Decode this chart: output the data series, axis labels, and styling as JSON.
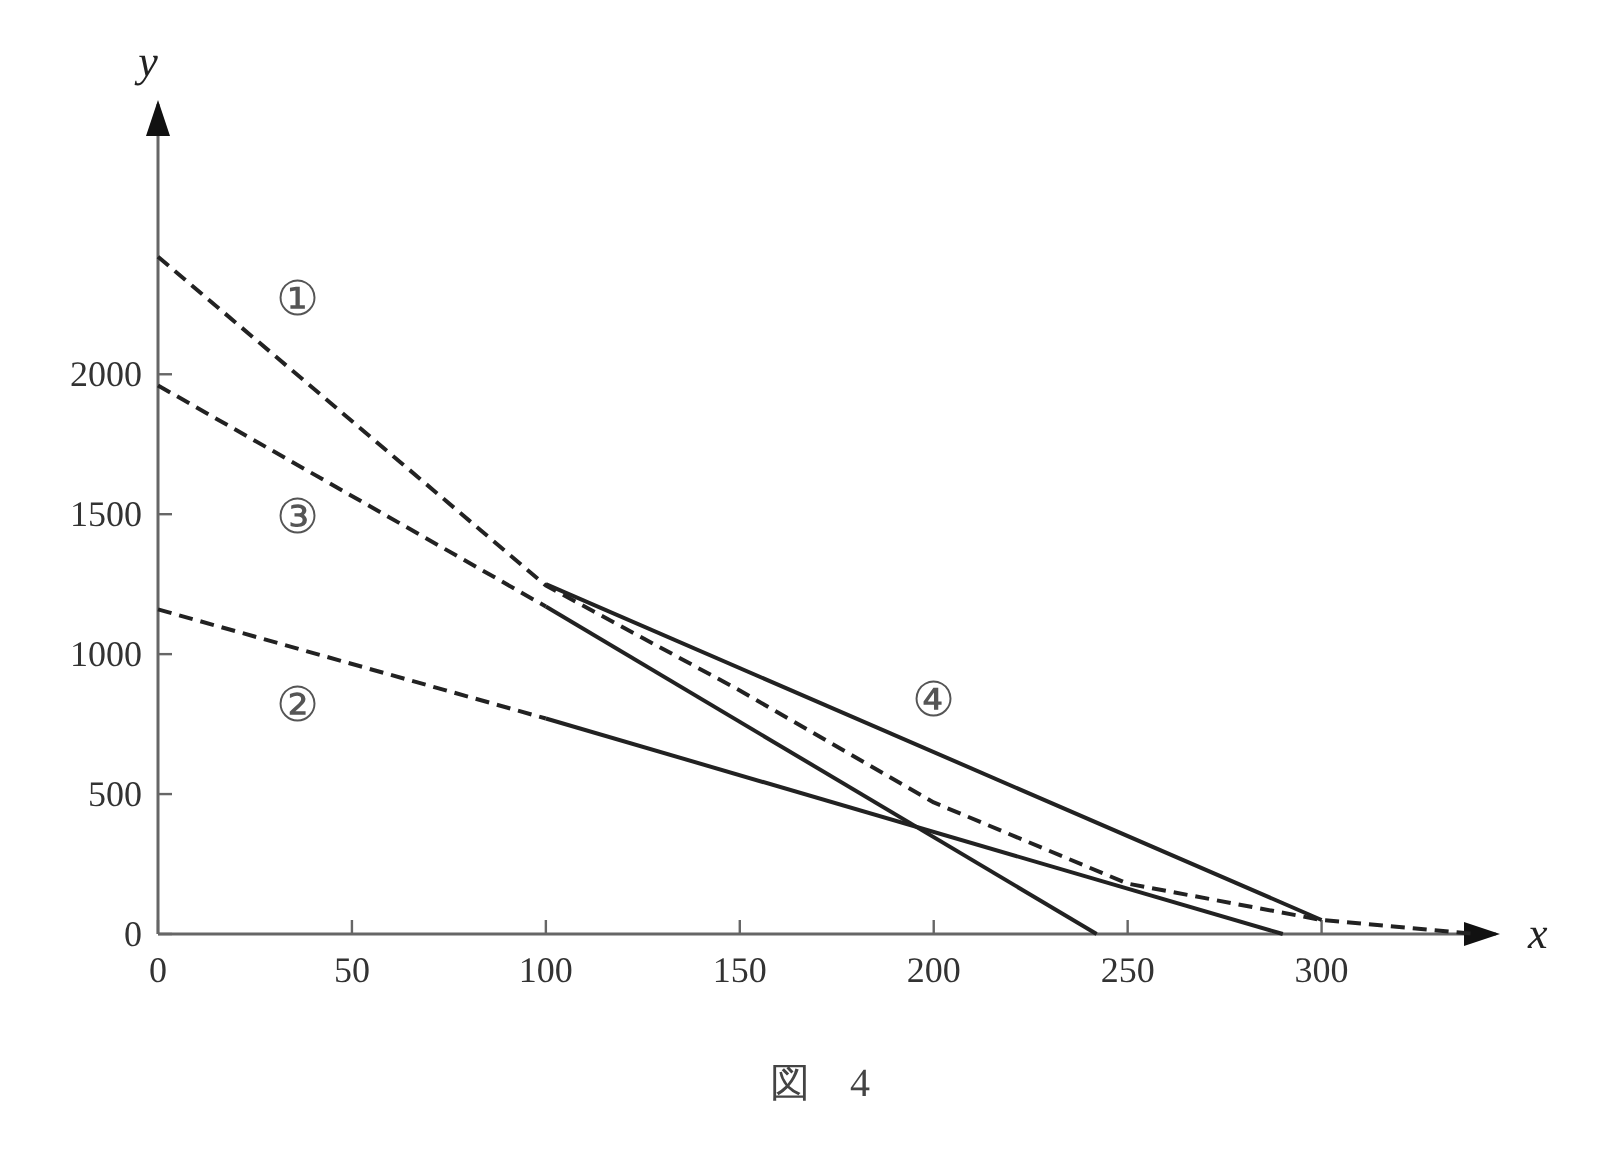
{
  "chart_data": {
    "type": "line",
    "xlabel": "x",
    "ylabel": "y",
    "xlim": [
      0,
      346
    ],
    "ylim": [
      0,
      2980
    ],
    "xticks": [
      0,
      50,
      100,
      150,
      200,
      250,
      300
    ],
    "yticks": [
      0,
      500,
      1000,
      1500,
      2000
    ],
    "series": [
      {
        "name": "①",
        "x": [
          0,
          100,
          150,
          200,
          250,
          300,
          340
        ],
        "values": [
          2420,
          1245,
          870,
          470,
          180,
          50,
          0
        ],
        "color": "#222222",
        "line_style": "dashed"
      },
      {
        "name": "③",
        "x": [
          0,
          100
        ],
        "values": [
          1960,
          1170
        ],
        "color": "#222222",
        "line_style": "dashed"
      },
      {
        "name": "②",
        "x": [
          0,
          100
        ],
        "values": [
          1160,
          770
        ],
        "color": "#222222",
        "line_style": "dashed"
      },
      {
        "name": "④",
        "x": [
          100,
          300
        ],
        "values": [
          1250,
          50
        ],
        "color": "#222222",
        "line_style": "solid"
      },
      {
        "x": [
          100,
          242
        ],
        "values": [
          1170,
          0
        ],
        "color": "#222222",
        "line_style": "solid"
      },
      {
        "x": [
          100,
          290
        ],
        "values": [
          770,
          0
        ],
        "color": "#222222",
        "line_style": "solid"
      }
    ],
    "annotations": [
      "図　4"
    ]
  }
}
